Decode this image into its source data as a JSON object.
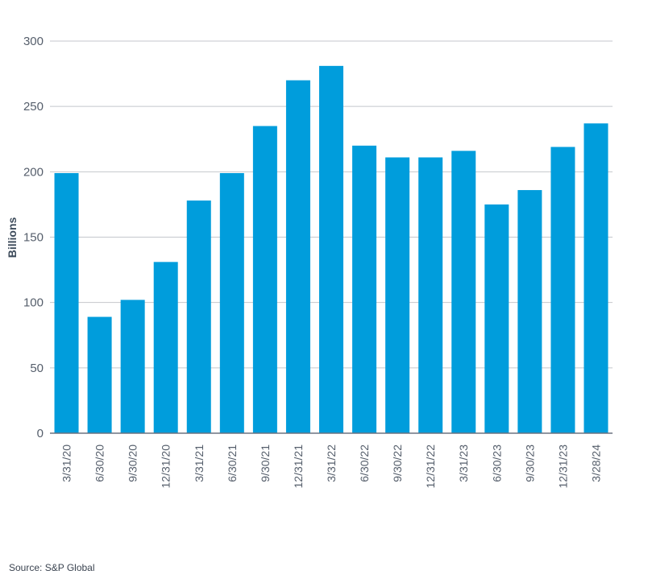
{
  "chart_data": {
    "type": "bar",
    "title": "",
    "xlabel": "",
    "ylabel": "Billions",
    "ylim": [
      0,
      300
    ],
    "yticks": [
      0,
      50,
      100,
      150,
      200,
      250,
      300
    ],
    "grid": true,
    "categories": [
      "3/31/20",
      "6/30/20",
      "9/30/20",
      "12/31/20",
      "3/31/21",
      "6/30/21",
      "9/30/21",
      "12/31/21",
      "3/31/22",
      "6/30/22",
      "9/30/22",
      "12/31/22",
      "3/31/23",
      "6/30/23",
      "9/30/23",
      "12/31/23",
      "3/28/24"
    ],
    "values": [
      199,
      89,
      102,
      131,
      178,
      199,
      235,
      270,
      281,
      220,
      211,
      211,
      216,
      175,
      186,
      219,
      237
    ],
    "bar_color": "#009ddc",
    "grid_color": "#c4c7cc",
    "axis_color": "#6b7380"
  },
  "source": "Source: S&P Global"
}
